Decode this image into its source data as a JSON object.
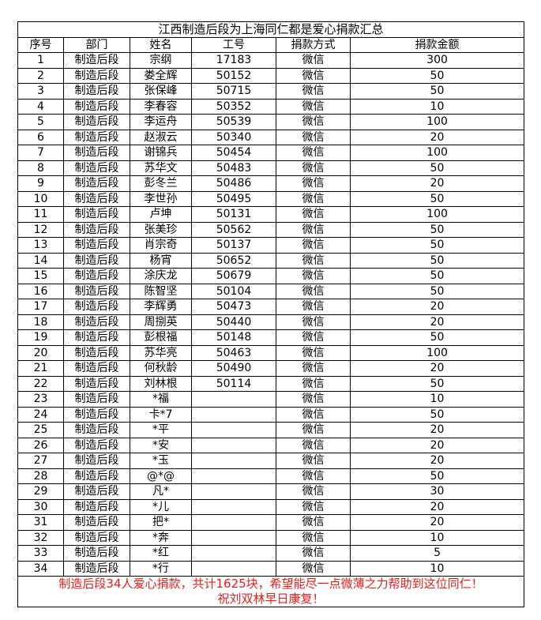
{
  "title": "江西制造后段为上海同仁都是爱心捐款汇总",
  "headers": [
    "序号",
    "部门",
    "姓名",
    "工号",
    "捐款方式",
    "捐款金额"
  ],
  "rows": [
    [
      "1",
      "制造后段",
      "宗纲",
      "17183",
      "微信",
      "300"
    ],
    [
      "2",
      "制造后段",
      "娄全辉",
      "50152",
      "微信",
      "50"
    ],
    [
      "3",
      "制造后段",
      "张保峰",
      "50715",
      "微信",
      "50"
    ],
    [
      "4",
      "制造后段",
      "李春容",
      "50352",
      "微信",
      "10"
    ],
    [
      "5",
      "制造后段",
      "李运舟",
      "50539",
      "微信",
      "100"
    ],
    [
      "6",
      "制造后段",
      "赵淑云",
      "50340",
      "微信",
      "20"
    ],
    [
      "7",
      "制造后段",
      "谢锦兵",
      "50454",
      "微信",
      "100"
    ],
    [
      "8",
      "制造后段",
      "苏华文",
      "50483",
      "微信",
      "50"
    ],
    [
      "9",
      "制造后段",
      "彭冬兰",
      "50486",
      "微信",
      "20"
    ],
    [
      "10",
      "制造后段",
      "李世孙",
      "50495",
      "微信",
      "50"
    ],
    [
      "11",
      "制造后段",
      "卢坤",
      "50131",
      "微信",
      "100"
    ],
    [
      "12",
      "制造后段",
      "张美珍",
      "50562",
      "微信",
      "50"
    ],
    [
      "13",
      "制造后段",
      "肖宗奇",
      "50137",
      "微信",
      "50"
    ],
    [
      "14",
      "制造后段",
      "杨宵",
      "50652",
      "微信",
      "50"
    ],
    [
      "15",
      "制造后段",
      "涂庆龙",
      "50679",
      "微信",
      "50"
    ],
    [
      "16",
      "制造后段",
      "陈智坚",
      "50104",
      "微信",
      "50"
    ],
    [
      "17",
      "制造后段",
      "李辉勇",
      "50473",
      "微信",
      "20"
    ],
    [
      "18",
      "制造后段",
      "周捌英",
      "50440",
      "微信",
      "20"
    ],
    [
      "19",
      "制造后段",
      "彭根福",
      "50148",
      "微信",
      "50"
    ],
    [
      "20",
      "制造后段",
      "苏华亮",
      "50463",
      "微信",
      "100"
    ],
    [
      "21",
      "制造后段",
      "何秋龄",
      "50490",
      "微信",
      "20"
    ],
    [
      "22",
      "制造后段",
      "刘林根",
      "50114",
      "微信",
      "50"
    ],
    [
      "23",
      "制造后段",
      "*福",
      "",
      "微信",
      "10"
    ],
    [
      "24",
      "制造后段",
      "卡*7",
      "",
      "微信",
      "50"
    ],
    [
      "25",
      "制造后段",
      "*平",
      "",
      "微信",
      "20"
    ],
    [
      "26",
      "制造后段",
      "*安",
      "",
      "微信",
      "20"
    ],
    [
      "27",
      "制造后段",
      "*玉",
      "",
      "微信",
      "20"
    ],
    [
      "28",
      "制造后段",
      "@*@",
      "",
      "微信",
      "50"
    ],
    [
      "29",
      "制造后段",
      "凡*",
      "",
      "微信",
      "30"
    ],
    [
      "30",
      "制造后段",
      "*儿",
      "",
      "微信",
      "20"
    ],
    [
      "31",
      "制造后段",
      "把*",
      "",
      "微信",
      "20"
    ],
    [
      "32",
      "制造后段",
      "*奔",
      "",
      "微信",
      "10"
    ],
    [
      "33",
      "制造后段",
      "*红",
      "",
      "微信",
      "5"
    ],
    [
      "34",
      "制造后段",
      "*行",
      "",
      "微信",
      "10"
    ]
  ],
  "footer": {
    "line1": "制造后段34人爱心捐款，共计1625块，希望能尽一点微薄之力帮助到这位同仁！",
    "line2": "祝刘双林早日康复！",
    "color": "#e0201c"
  }
}
